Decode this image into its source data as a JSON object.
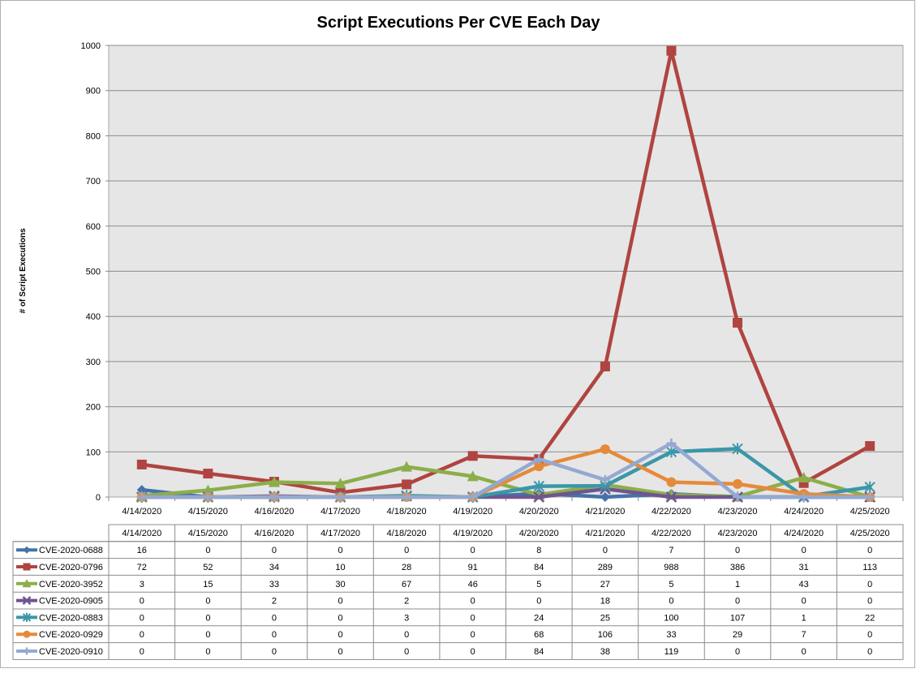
{
  "chart_data": {
    "type": "line",
    "title": "Script Executions Per CVE Each Day",
    "xlabel": "",
    "ylabel": "# of Script Executions",
    "ylim": [
      0,
      1000
    ],
    "yticks": [
      "0",
      "100",
      "200",
      "300",
      "400",
      "500",
      "600",
      "700",
      "800",
      "900",
      "1000"
    ],
    "grid": true,
    "legend": "data-table",
    "categories": [
      "4/14/2020",
      "4/15/2020",
      "4/16/2020",
      "4/17/2020",
      "4/18/2020",
      "4/19/2020",
      "4/20/2020",
      "4/21/2020",
      "4/22/2020",
      "4/23/2020",
      "4/24/2020",
      "4/25/2020"
    ],
    "series": [
      {
        "name": "CVE-2020-0688",
        "color": "#4472A8",
        "marker": "diamond",
        "values": [
          16,
          0,
          0,
          0,
          0,
          0,
          8,
          0,
          7,
          0,
          0,
          0
        ]
      },
      {
        "name": "CVE-2020-0796",
        "color": "#B04440",
        "marker": "square",
        "values": [
          72,
          52,
          34,
          10,
          28,
          91,
          84,
          289,
          988,
          386,
          31,
          113
        ]
      },
      {
        "name": "CVE-2020-3952",
        "color": "#8CAE4A",
        "marker": "triangle",
        "values": [
          3,
          15,
          33,
          30,
          67,
          46,
          5,
          27,
          5,
          1,
          43,
          0
        ]
      },
      {
        "name": "CVE-2020-0905",
        "color": "#6F5590",
        "marker": "x",
        "values": [
          0,
          0,
          2,
          0,
          2,
          0,
          0,
          18,
          0,
          0,
          0,
          0
        ]
      },
      {
        "name": "CVE-2020-0883",
        "color": "#3A97A8",
        "marker": "star",
        "values": [
          0,
          0,
          0,
          0,
          3,
          0,
          24,
          25,
          100,
          107,
          1,
          22
        ]
      },
      {
        "name": "CVE-2020-0929",
        "color": "#E58A3A",
        "marker": "circle",
        "values": [
          0,
          0,
          0,
          0,
          0,
          0,
          68,
          106,
          33,
          29,
          7,
          0
        ]
      },
      {
        "name": "CVE-2020-0910",
        "color": "#94A9D2",
        "marker": "plus",
        "values": [
          0,
          0,
          0,
          0,
          0,
          0,
          84,
          38,
          119,
          0,
          0,
          0
        ]
      }
    ]
  }
}
